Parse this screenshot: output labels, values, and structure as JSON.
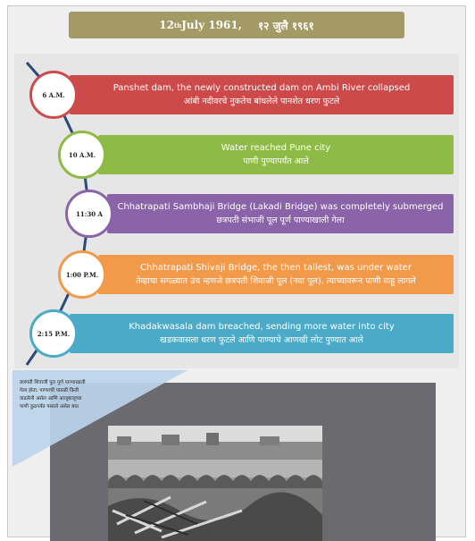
{
  "date_banner": {
    "day": "12",
    "ordinal": "th",
    "month_year": " July 1961,",
    "marathi_date": "१२ जुलै १९६१"
  },
  "events": [
    {
      "time": "6 A.M.",
      "english": "Panshet dam, the newly constructed dam on Ambi River collapsed",
      "marathi": "आंबी नदीवरचे नुकतेच बांधलेले पानशेत धरण फुटले",
      "color": "#cc4a4a"
    },
    {
      "time": "10 A.M.",
      "english": "Water reached Pune city",
      "marathi": "पाणी पुण्यापर्यंत आले",
      "color": "#8ebb45"
    },
    {
      "time": "11:30 A",
      "english": "Chhatrapati Sambhaji Bridge (Lakadi Bridge) was completely submerged",
      "marathi": "छत्रपती संभाजी पूल पूर्ण पाण्याखाली गेला",
      "color": "#8a63a8"
    },
    {
      "time": "1:00 P.M.",
      "english": "Chhatrapati Shivaji Bridge, the then tallest, was under water",
      "marathi": "तेव्हाचा सगळ्यात उंच म्हणजे छत्रपती शिवाजी पूल (नवा पूल), त्याच्यावरून पाणी वाहू लागले",
      "color": "#f29a4a"
    },
    {
      "time": "2:15 P.M.",
      "english": "Khadakwasala dam breached,  sending more water into city",
      "marathi": "खडकवासला धरण फुटले आणि पाण्याचे आणखी लोट पुण्यात आले",
      "color": "#4aaac8"
    }
  ],
  "caption": {
    "lines": [
      "छत्रपती शिवाजी पूल पूर्ण पाण्याखाली",
      "गेला होता. पाण्याची पातळी किती",
      "वाढलेली असेल आणि आजूबाजूच्या",
      "पाणी कुठपर्यंत पसरले असेल बघा"
    ]
  },
  "colors": {
    "timeline_line": "#2a4a7a",
    "banner": "#a39a65",
    "caption_triangle": "#bcd4ea",
    "photo_frame": "#6a6a6f"
  }
}
